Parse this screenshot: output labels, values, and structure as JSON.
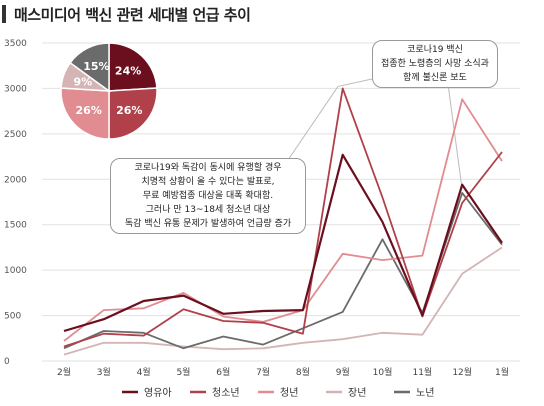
{
  "title": "매스미디어 백신 관련  세대별 언급 추이",
  "colors": {
    "영유아": "#6b0f1f",
    "청소년": "#b0414a",
    "청년": "#e08c90",
    "장년": "#d4b4b4",
    "노년": "#6b6b6b"
  },
  "annotations": {
    "left": [
      "코로나19와 독감이 동시에 유행할 경우",
      "치명적 상황이 올 수 있다는 발표로,",
      "무료 예방접종 대상을 대폭 확대함.",
      "그러나 만 13~18세 청소년 대상",
      "독감 백신 유통 문제가 발생하여 언급량 증가"
    ],
    "right": [
      "코로나19 백신",
      "접종한 노령층의 사망 소식과",
      "함께 불신론 보도"
    ]
  },
  "chart_data": [
    {
      "type": "line",
      "categories": [
        "2월",
        "3월",
        "4월",
        "5월",
        "6월",
        "7월",
        "8월",
        "9월",
        "10월",
        "11월",
        "12월",
        "1월"
      ],
      "ylim": [
        0,
        3500
      ],
      "yticks": [
        0,
        500,
        1000,
        1500,
        2000,
        2500,
        3000,
        3500
      ],
      "grid": true,
      "legend": "bottom",
      "series": [
        {
          "name": "영유아",
          "values": [
            330,
            460,
            660,
            720,
            520,
            550,
            560,
            2270,
            1530,
            500,
            1940,
            1300
          ]
        },
        {
          "name": "청소년",
          "values": [
            160,
            300,
            280,
            570,
            440,
            420,
            300,
            3000,
            1800,
            490,
            1740,
            2300
          ]
        },
        {
          "name": "청년",
          "values": [
            220,
            560,
            580,
            750,
            490,
            430,
            560,
            1180,
            1110,
            1160,
            2880,
            2200
          ]
        },
        {
          "name": "장년",
          "values": [
            70,
            200,
            200,
            160,
            130,
            140,
            200,
            240,
            310,
            290,
            960,
            1250
          ]
        },
        {
          "name": "노년",
          "values": [
            140,
            330,
            310,
            140,
            270,
            180,
            360,
            540,
            1340,
            530,
            1850,
            1280
          ]
        }
      ]
    },
    {
      "type": "pie",
      "slices": [
        {
          "label": "24%",
          "value": 24,
          "color": "#6b0f1f"
        },
        {
          "label": "26%",
          "value": 26,
          "color": "#b0414a"
        },
        {
          "label": "26%",
          "value": 26,
          "color": "#e08c90"
        },
        {
          "label": "9%",
          "value": 9,
          "color": "#d4b4b4"
        },
        {
          "label": "15%",
          "value": 15,
          "color": "#6b6b6b"
        }
      ]
    }
  ]
}
